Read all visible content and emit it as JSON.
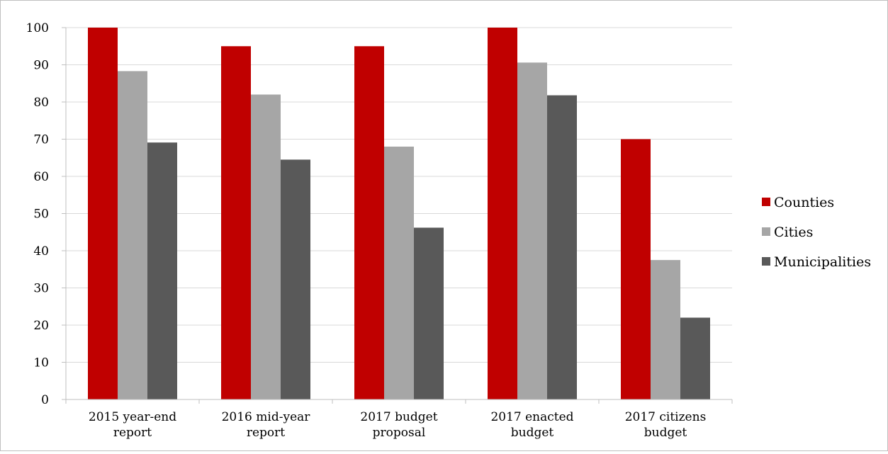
{
  "chart_data": {
    "type": "bar",
    "categories": [
      [
        "2015 year-end",
        "report"
      ],
      [
        "2016 mid-year",
        "report"
      ],
      [
        "2017 budget",
        "proposal"
      ],
      [
        "2017 enacted",
        "budget"
      ],
      [
        "2017 citizens",
        "budget"
      ]
    ],
    "series": [
      {
        "name": "Counties",
        "color": "#c00000",
        "values": [
          100,
          95,
          95,
          100,
          70
        ]
      },
      {
        "name": "Cities",
        "color": "#a6a6a6",
        "values": [
          88.3,
          82,
          68,
          90.6,
          37.5
        ]
      },
      {
        "name": "Municipalities",
        "color": "#595959",
        "values": [
          69.1,
          64.5,
          46.2,
          81.8,
          22
        ]
      }
    ],
    "ylim": [
      0,
      100
    ],
    "yticks": [
      0,
      10,
      20,
      30,
      40,
      50,
      60,
      70,
      80,
      90,
      100
    ],
    "ytick_labels": [
      "0",
      "10",
      "20",
      "30",
      "40",
      "50",
      "60",
      "70",
      "80",
      "90",
      "100"
    ],
    "grid": true,
    "legend_position": "right"
  }
}
